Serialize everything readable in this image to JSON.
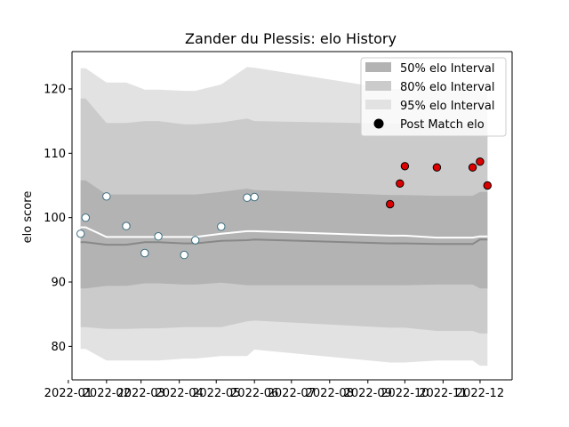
{
  "chart_data": {
    "type": "line",
    "title": "Zander du Plessis: elo History",
    "xlabel": "",
    "ylabel": "elo score",
    "ylim": [
      74.8,
      125.8
    ],
    "xlim": [
      "2022-01-04",
      "2022-12-27"
    ],
    "x_ticks": [
      {
        "date": "2022-01-01",
        "label": "2022-01"
      },
      {
        "date": "2022-02-01",
        "label": "2022-02"
      },
      {
        "date": "2022-03-01",
        "label": "2022-03"
      },
      {
        "date": "2022-04-01",
        "label": "2022-04"
      },
      {
        "date": "2022-05-01",
        "label": "2022-05"
      },
      {
        "date": "2022-06-01",
        "label": "2022-06"
      },
      {
        "date": "2022-07-01",
        "label": "2022-07"
      },
      {
        "date": "2022-08-01",
        "label": "2022-08"
      },
      {
        "date": "2022-09-01",
        "label": "2022-09"
      },
      {
        "date": "2022-10-01",
        "label": "2022-10"
      },
      {
        "date": "2022-11-01",
        "label": "2022-11"
      },
      {
        "date": "2022-12-01",
        "label": "2022-12"
      }
    ],
    "y_ticks": [
      80,
      90,
      100,
      110,
      120
    ],
    "grid": false,
    "legend_position": "top-right",
    "legend": [
      {
        "label": "50% elo Interval",
        "kind": "band",
        "color": "#b3b3b3"
      },
      {
        "label": "80% elo Interval",
        "kind": "band",
        "color": "#cbcbcb"
      },
      {
        "label": "95% elo Interval",
        "kind": "band",
        "color": "#e2e2e2"
      },
      {
        "label": "Post Match elo",
        "kind": "marker",
        "color": "#000000"
      }
    ],
    "x": [
      "2022-01-11",
      "2022-01-15",
      "2022-02-01",
      "2022-02-17",
      "2022-03-04",
      "2022-03-15",
      "2022-04-05",
      "2022-04-14",
      "2022-05-05",
      "2022-05-26",
      "2022-06-01",
      "2022-09-19",
      "2022-09-27",
      "2022-10-01",
      "2022-10-27",
      "2022-11-25",
      "2022-12-01",
      "2022-12-07"
    ],
    "bands": {
      "median": [
        96.2,
        96.2,
        95.8,
        95.8,
        96.2,
        96.2,
        96.0,
        96.0,
        96.4,
        96.5,
        96.6,
        96.0,
        96.0,
        96.0,
        95.9,
        95.9,
        96.6,
        96.6
      ],
      "mean": [
        98.5,
        98.5,
        97.0,
        97.0,
        97.0,
        97.0,
        97.0,
        97.0,
        97.5,
        97.9,
        97.9,
        97.2,
        97.2,
        97.2,
        96.9,
        96.9,
        97.1,
        97.1
      ],
      "band50": {
        "lower": [
          89.0,
          89.0,
          89.4,
          89.4,
          89.8,
          89.8,
          89.6,
          89.6,
          89.9,
          89.5,
          89.5,
          89.5,
          89.5,
          89.5,
          89.6,
          89.6,
          89.0,
          89.0
        ],
        "upper": [
          105.8,
          105.8,
          103.6,
          103.6,
          103.6,
          103.6,
          103.6,
          103.6,
          104.0,
          104.5,
          104.3,
          103.5,
          103.5,
          103.5,
          103.4,
          103.4,
          104.0,
          104.0
        ]
      },
      "band80": {
        "lower": [
          83.0,
          83.0,
          82.7,
          82.7,
          82.8,
          82.8,
          83.0,
          83.0,
          83.0,
          83.9,
          84.0,
          82.9,
          82.9,
          82.9,
          82.4,
          82.4,
          82.0,
          82.0
        ],
        "upper": [
          118.5,
          118.5,
          114.7,
          114.7,
          115.0,
          115.0,
          114.5,
          114.5,
          114.8,
          115.4,
          115.0,
          114.6,
          114.6,
          114.6,
          114.4,
          114.4,
          114.9,
          114.9
        ]
      },
      "band95": {
        "lower": [
          79.6,
          79.6,
          77.8,
          77.8,
          77.8,
          77.8,
          78.1,
          78.1,
          78.5,
          78.5,
          79.5,
          77.5,
          77.5,
          77.5,
          77.8,
          77.8,
          77.0,
          77.0
        ],
        "upper": [
          123.2,
          123.2,
          121.0,
          121.0,
          119.9,
          119.9,
          119.7,
          119.7,
          120.7,
          123.4,
          123.3,
          120.0,
          120.0,
          120.0,
          120.3,
          120.3,
          119.7,
          119.7
        ]
      }
    },
    "points": [
      {
        "date": "2022-01-11",
        "elo": 97.5,
        "color": "#ffffff"
      },
      {
        "date": "2022-01-15",
        "elo": 100.0,
        "color": "#ffffff"
      },
      {
        "date": "2022-02-01",
        "elo": 103.3,
        "color": "#ffffff"
      },
      {
        "date": "2022-02-17",
        "elo": 98.7,
        "color": "#ffffff"
      },
      {
        "date": "2022-03-04",
        "elo": 94.5,
        "color": "#ffffff"
      },
      {
        "date": "2022-03-15",
        "elo": 97.1,
        "color": "#ffffff"
      },
      {
        "date": "2022-04-05",
        "elo": 94.2,
        "color": "#ffffff"
      },
      {
        "date": "2022-04-14",
        "elo": 96.5,
        "color": "#ffffff"
      },
      {
        "date": "2022-05-05",
        "elo": 98.6,
        "color": "#ffffff"
      },
      {
        "date": "2022-05-26",
        "elo": 103.1,
        "color": "#ffffff"
      },
      {
        "date": "2022-06-01",
        "elo": 103.2,
        "color": "#ffffff"
      },
      {
        "date": "2022-09-19",
        "elo": 102.1,
        "color": "#dd0000"
      },
      {
        "date": "2022-09-27",
        "elo": 105.3,
        "color": "#dd0000"
      },
      {
        "date": "2022-10-01",
        "elo": 108.0,
        "color": "#dd0000"
      },
      {
        "date": "2022-10-27",
        "elo": 107.8,
        "color": "#dd0000"
      },
      {
        "date": "2022-11-25",
        "elo": 107.8,
        "color": "#dd0000"
      },
      {
        "date": "2022-12-01",
        "elo": 108.7,
        "color": "#dd0000"
      },
      {
        "date": "2022-12-07",
        "elo": 105.0,
        "color": "#dd0000"
      }
    ],
    "colors": {
      "band50": "#b3b3b3",
      "band80": "#cbcbcb",
      "band95": "#e2e2e2",
      "median_line": "#888888",
      "mean_line": "#ffffff",
      "point_edge_light": "#3a6e80",
      "point_edge_dark": "#000000"
    }
  }
}
